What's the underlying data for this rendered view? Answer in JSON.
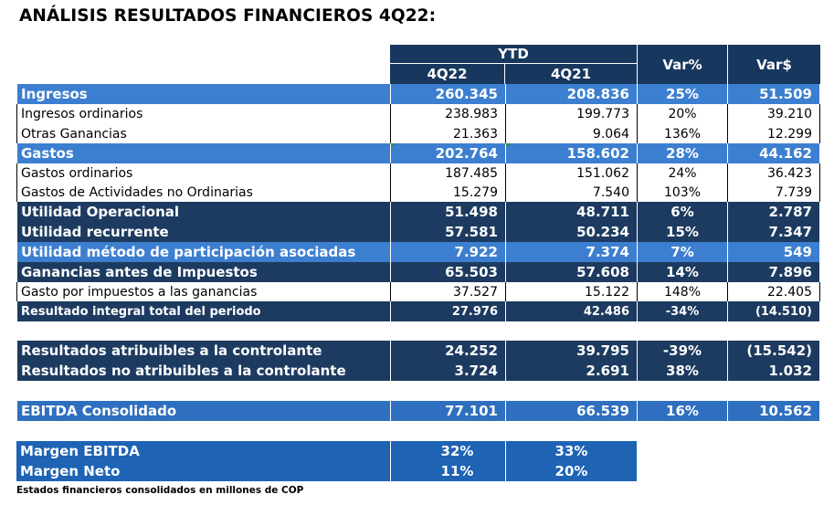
{
  "title": "ANÁLISIS RESULTADOS FINANCIEROS 4Q22:",
  "header": {
    "ytd": "YTD",
    "col_4q22": "4Q22",
    "col_4q21": "4Q21",
    "var_pct": "Var%",
    "var_abs": "Var$"
  },
  "rows": [
    {
      "label": "Ingresos",
      "v1": "260.345",
      "v2": "208.836",
      "pct": "25%",
      "abs": "51.509",
      "style": "blue"
    },
    {
      "label": "Ingresos ordinarios",
      "v1": "238.983",
      "v2": "199.773",
      "pct": "20%",
      "abs": "39.210",
      "style": "white"
    },
    {
      "label": "Otras Ganancias",
      "v1": "21.363",
      "v2": "9.064",
      "pct": "136%",
      "abs": "12.299",
      "style": "white"
    },
    {
      "label": "Gastos",
      "v1": "202.764",
      "v2": "158.602",
      "pct": "28%",
      "abs": "44.162",
      "style": "blue"
    },
    {
      "label": "Gastos ordinarios",
      "v1": "187.485",
      "v2": "151.062",
      "pct": "24%",
      "abs": "36.423",
      "style": "white"
    },
    {
      "label": "Gastos de Actividades no Ordinarias",
      "v1": "15.279",
      "v2": "7.540",
      "pct": "103%",
      "abs": "7.739",
      "style": "white"
    },
    {
      "label": "Utilidad Operacional",
      "v1": "51.498",
      "v2": "48.711",
      "pct": "6%",
      "abs": "2.787",
      "style": "navy"
    },
    {
      "label": "Utilidad recurrente",
      "v1": "57.581",
      "v2": "50.234",
      "pct": "15%",
      "abs": "7.347",
      "style": "navy"
    },
    {
      "label": "Utilidad método de participación asociadas",
      "v1": "7.922",
      "v2": "7.374",
      "pct": "7%",
      "abs": "549",
      "style": "blue"
    },
    {
      "label": "Ganancias antes de Impuestos",
      "v1": "65.503",
      "v2": "57.608",
      "pct": "14%",
      "abs": "7.896",
      "style": "navy"
    },
    {
      "label": "Gasto por impuestos a las ganancias",
      "v1": "37.527",
      "v2": "15.122",
      "pct": "148%",
      "abs": "22.405",
      "style": "white"
    },
    {
      "label": "Resultado integral total del periodo",
      "v1": "27.976",
      "v2": "42.486",
      "pct": "-34%",
      "abs": "(14.510)",
      "style": "navy"
    }
  ],
  "attrib_rows": [
    {
      "label": "Resultados atribuibles a la controlante",
      "v1": "24.252",
      "v2": "39.795",
      "pct": "-39%",
      "abs": "(15.542)"
    },
    {
      "label": "Resultados no atribuibles a la controlante",
      "v1": "3.724",
      "v2": "2.691",
      "pct": "38%",
      "abs": "1.032"
    }
  ],
  "ebitda_row": {
    "label": "EBITDA Consolidado",
    "v1": "77.101",
    "v2": "66.539",
    "pct": "16%",
    "abs": "10.562"
  },
  "margin_rows": [
    {
      "label": "Margen EBITDA",
      "v1": "32%",
      "v2": "33%"
    },
    {
      "label": "Margen Neto",
      "v1": "11%",
      "v2": "20%"
    }
  ],
  "footnote": "Estados financieros consolidados en millones de COP"
}
